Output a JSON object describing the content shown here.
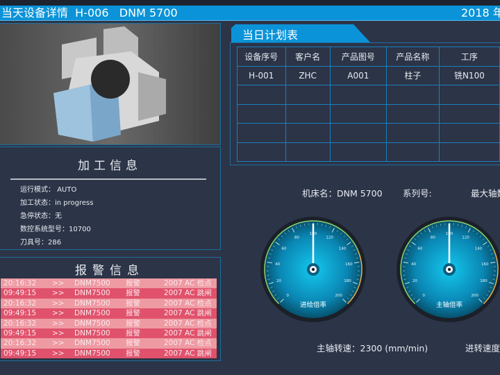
{
  "header": {
    "title": "当天设备详情  H-006   DNM 5700",
    "date": "2018 年"
  },
  "info": {
    "title": "加工信息",
    "rows": [
      {
        "label": "运行模式：",
        "value": "AUTO"
      },
      {
        "label": "加工状态：",
        "value": "in progress"
      },
      {
        "label": "急停状态：",
        "value": "无"
      },
      {
        "label": "数控系统型号：",
        "value": "10700"
      },
      {
        "label": "刀具号：",
        "value": "286"
      }
    ]
  },
  "alarm": {
    "title": "报警信息",
    "rows": [
      {
        "time": "20:16:32",
        "arrow": ">>",
        "machine": "DNM7500",
        "type": "报警",
        "msg": "2007  AC 检点"
      },
      {
        "time": "09:49:15",
        "arrow": ">>",
        "machine": "DNM7500",
        "type": "报警",
        "msg": "2007  AC 跳闸"
      },
      {
        "time": "20:16:32",
        "arrow": ">>",
        "machine": "DNM7500",
        "type": "报警",
        "msg": "2007  AC 检点"
      },
      {
        "time": "09:49:15",
        "arrow": ">>",
        "machine": "DNM7500",
        "type": "报警",
        "msg": "2007  AC 跳闸"
      },
      {
        "time": "20:16:32",
        "arrow": ">>",
        "machine": "DNM7500",
        "type": "报警",
        "msg": "2007  AC 检点"
      },
      {
        "time": "09:49:15",
        "arrow": ">>",
        "machine": "DNM7500",
        "type": "报警",
        "msg": "2007  AC 跳闸"
      },
      {
        "time": "20:16:32",
        "arrow": ">>",
        "machine": "DNM7500",
        "type": "报警",
        "msg": "2007  AC 检点"
      },
      {
        "time": "09:49:15",
        "arrow": ">>",
        "machine": "DNM7500",
        "type": "报警",
        "msg": "2007  AC 跳闸"
      }
    ],
    "colors": {
      "light": "#ee9aa3",
      "dark": "#e0526c"
    }
  },
  "plan": {
    "title": "当日计划表",
    "headers": [
      "设备序号",
      "客户名",
      "产品图号",
      "产品名称",
      "工序"
    ],
    "rows": [
      [
        "H-001",
        "ZHC",
        "A001",
        "柱子",
        "铣N100"
      ],
      [
        "",
        "",
        "",
        "",
        ""
      ],
      [
        "",
        "",
        "",
        "",
        ""
      ],
      [
        "",
        "",
        "",
        "",
        ""
      ],
      [
        "",
        "",
        "",
        "",
        ""
      ]
    ]
  },
  "machine": {
    "name_label": "机床名：DNM 5700",
    "series_label": "系列号:",
    "max_axis_label": "最大轴数"
  },
  "gauges": [
    {
      "label": "进给倍率",
      "value": 100,
      "min": 0,
      "max": 200,
      "ticks": [
        "0",
        "20",
        "40",
        "60",
        "80",
        "100",
        "120",
        "140",
        "160",
        "180",
        "200"
      ]
    },
    {
      "label": "主轴倍率",
      "value": 100,
      "min": 0,
      "max": 200,
      "ticks": [
        "0",
        "20",
        "40",
        "60",
        "80",
        "100",
        "120",
        "140",
        "160",
        "180",
        "200"
      ]
    }
  ],
  "footer": {
    "spindle_speed": "主轴转速：2300 (mm/min)",
    "feed_speed": "进转速度"
  },
  "colors": {
    "accent": "#0a93d8",
    "background": "#2c3447"
  }
}
